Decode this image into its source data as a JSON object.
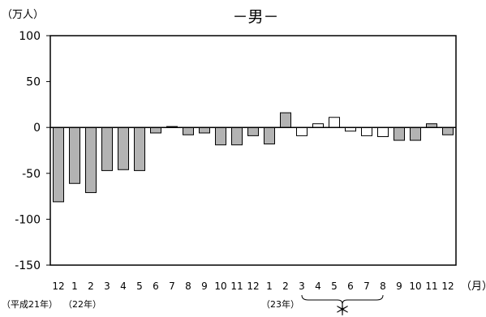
{
  "chart_data": {
    "type": "bar",
    "title": "－男－",
    "ylabel": "（万人）",
    "xlabel": "（月）",
    "ylim": [
      -150,
      100
    ],
    "yticks": [
      100,
      50,
      0,
      -50,
      -100,
      -150
    ],
    "grid": false,
    "categories": [
      "12",
      "1",
      "2",
      "3",
      "4",
      "5",
      "6",
      "7",
      "8",
      "9",
      "10",
      "11",
      "12",
      "1",
      "2",
      "3",
      "4",
      "5",
      "6",
      "7",
      "8",
      "9",
      "10",
      "11",
      "12"
    ],
    "values": [
      -81,
      -61,
      -71,
      -47,
      -46,
      -47,
      -6,
      1,
      -8,
      -6,
      -19,
      -19,
      -9,
      -18,
      16,
      -9,
      4,
      11,
      -4,
      -9,
      -10,
      -14,
      -14,
      4,
      -8
    ],
    "bar_fill": [
      "gray",
      "gray",
      "gray",
      "gray",
      "gray",
      "gray",
      "gray",
      "gray",
      "gray",
      "gray",
      "gray",
      "gray",
      "gray",
      "gray",
      "gray",
      "white",
      "white",
      "white",
      "white",
      "white",
      "white",
      "gray",
      "gray",
      "gray",
      "gray"
    ],
    "colors": {
      "gray": "#b3b3b3",
      "white": "#ffffff",
      "outline": "#000000"
    },
    "annotations": {
      "year_labels": [
        "（平成21年）",
        "（22年）",
        "（23年）"
      ],
      "brace_mark": "＊"
    }
  }
}
